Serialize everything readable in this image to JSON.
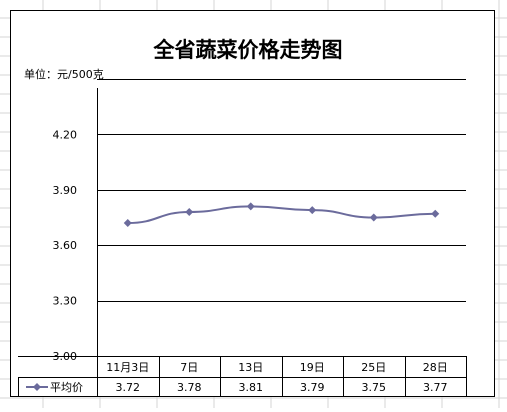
{
  "chart_data": {
    "type": "line",
    "title": "全省蔬菜价格走势图",
    "unit_label": "单位：元/500克",
    "categories": [
      "11月3日",
      "7日",
      "13日",
      "19日",
      "25日",
      "28日"
    ],
    "series": [
      {
        "name": "平均价",
        "values": [
          3.72,
          3.78,
          3.81,
          3.79,
          3.75,
          3.77
        ],
        "value_labels": [
          "3.72",
          "3.78",
          "3.81",
          "3.79",
          "3.75",
          "3.77"
        ],
        "color": "#6b6b9c",
        "marker": "diamond"
      }
    ],
    "ylim": [
      3.0,
      4.5
    ],
    "yticks": [
      "3.00",
      "3.30",
      "3.60",
      "3.90",
      "4.20"
    ],
    "ytick_values": [
      3.0,
      3.3,
      3.6,
      3.9,
      4.2
    ],
    "grid": true,
    "data_table": true,
    "colors": {
      "gridline": "#000000",
      "sheet_grid": "#d4d4d4",
      "series": "#6b6b9c"
    }
  }
}
